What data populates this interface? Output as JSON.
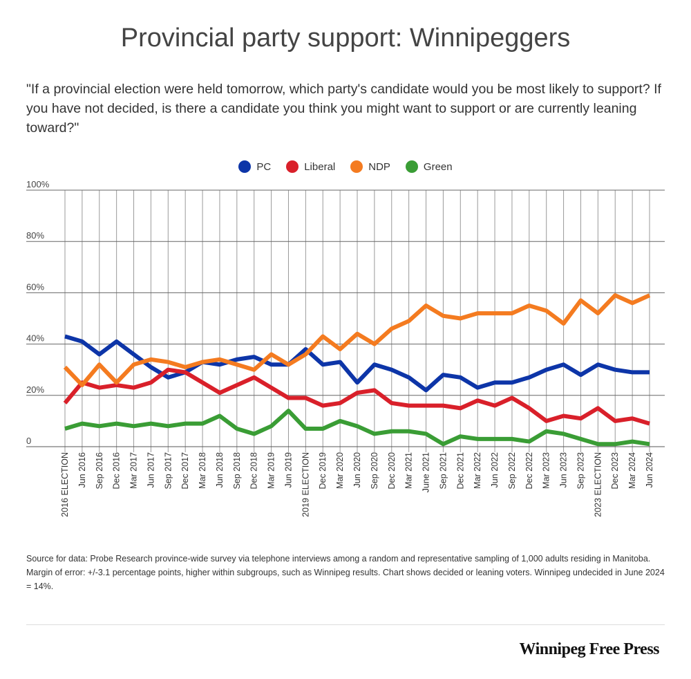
{
  "chart_data": {
    "type": "line",
    "title": "Provincial party support: Winnipeggers",
    "subtitle": "\"If a provincial election were held tomorrow, which party's candidate would you be most likely to support? If you have not decided, is there a candidate you think you might want to support or are currently leaning toward?\"",
    "xlabel": "",
    "ylabel": "",
    "ylim": [
      0,
      100
    ],
    "y_ticks": [
      "0",
      "20%",
      "40%",
      "60%",
      "80%",
      "100%"
    ],
    "y_tick_values": [
      0,
      20,
      40,
      60,
      80,
      100
    ],
    "grid": true,
    "legend_position": "top-center",
    "categories": [
      "2016 ELECTION",
      "Jun 2016",
      "Sep 2016",
      "Dec 2016",
      "Mar 2017",
      "Jun 2017",
      "Sep 2017",
      "Dec 2017",
      "Mar 2018",
      "Jun 2018",
      "Sep 2018",
      "Dec 2018",
      "Mar 2019",
      "Jun 2019",
      "2019 ELECTION",
      "Dec 2019",
      "Mar 2020",
      "Jun 2020",
      "Sep 2020",
      "Dec 2020",
      "Mar 2021",
      "June 2021",
      "Sep 2021",
      "Dec 2021",
      "Mar 2022",
      "Jun 2022",
      "Sep 2022",
      "Dec 2022",
      "Mar 2023",
      "Jun 2023",
      "Sep 2023",
      "2023 ELECTION",
      "Dec 2023",
      "Mar 2024",
      "Jun 2024"
    ],
    "series": [
      {
        "name": "PC",
        "color": "#0d35a8",
        "values": [
          43,
          41,
          36,
          41,
          36,
          31,
          27,
          29,
          33,
          32,
          34,
          35,
          32,
          32,
          38,
          32,
          33,
          25,
          32,
          30,
          27,
          22,
          28,
          27,
          23,
          25,
          25,
          27,
          30,
          32,
          28,
          32,
          30,
          29,
          29
        ]
      },
      {
        "name": "Liberal",
        "color": "#d9202a",
        "values": [
          17,
          25,
          23,
          24,
          23,
          25,
          30,
          29,
          25,
          21,
          24,
          27,
          23,
          19,
          19,
          16,
          17,
          21,
          22,
          17,
          16,
          16,
          16,
          15,
          18,
          16,
          19,
          15,
          10,
          12,
          11,
          15,
          10,
          11,
          9
        ]
      },
      {
        "name": "NDP",
        "color": "#f47b20",
        "values": [
          31,
          24,
          32,
          25,
          32,
          34,
          33,
          31,
          33,
          34,
          32,
          30,
          36,
          32,
          36,
          43,
          38,
          44,
          40,
          46,
          49,
          55,
          51,
          50,
          52,
          52,
          52,
          55,
          53,
          48,
          57,
          52,
          59,
          56,
          59
        ]
      },
      {
        "name": "Green",
        "color": "#3a9d35",
        "values": [
          7,
          9,
          8,
          9,
          8,
          9,
          8,
          9,
          9,
          12,
          7,
          5,
          8,
          14,
          7,
          7,
          10,
          8,
          5,
          6,
          6,
          5,
          1,
          4,
          3,
          3,
          3,
          2,
          6,
          5,
          3,
          1,
          1,
          2,
          1
        ]
      }
    ]
  },
  "footer": {
    "source": "Source for data:  Probe Research province-wide survey via telephone interviews among a random and representative sampling of 1,000 adults residing in Manitoba. Margin of error: +/-3.1 percentage points, higher within subgroups, such as Winnipeg results. Chart shows decided or leaning voters. Winnipeg undecided in June 2024 = 14%.",
    "logo": "Winnipeg Free Press"
  }
}
